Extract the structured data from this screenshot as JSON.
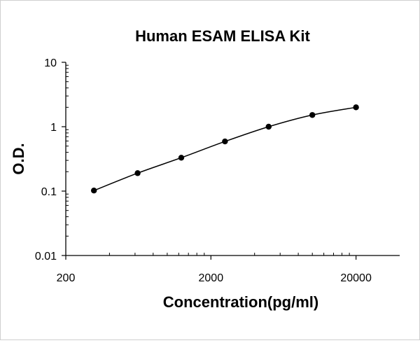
{
  "chart_data": {
    "type": "line",
    "title": "Human ESAM ELISA Kit",
    "xlabel": "Concentration(pg/ml)",
    "ylabel": "O.D.",
    "x_scale": "log",
    "y_scale": "log",
    "xlim": [
      200,
      40000
    ],
    "ylim": [
      0.01,
      10
    ],
    "x_tick_labels": [
      "200",
      "2000",
      "20000"
    ],
    "y_tick_labels": [
      "10",
      "1",
      "0.1",
      "0.01"
    ],
    "series": [
      {
        "x": [
          312.5,
          625,
          1250,
          2500,
          5000,
          10000,
          20000
        ],
        "y": [
          0.102,
          0.19,
          0.33,
          0.59,
          1.0,
          1.52,
          2.0
        ]
      }
    ],
    "grid": false,
    "legend": "none"
  }
}
